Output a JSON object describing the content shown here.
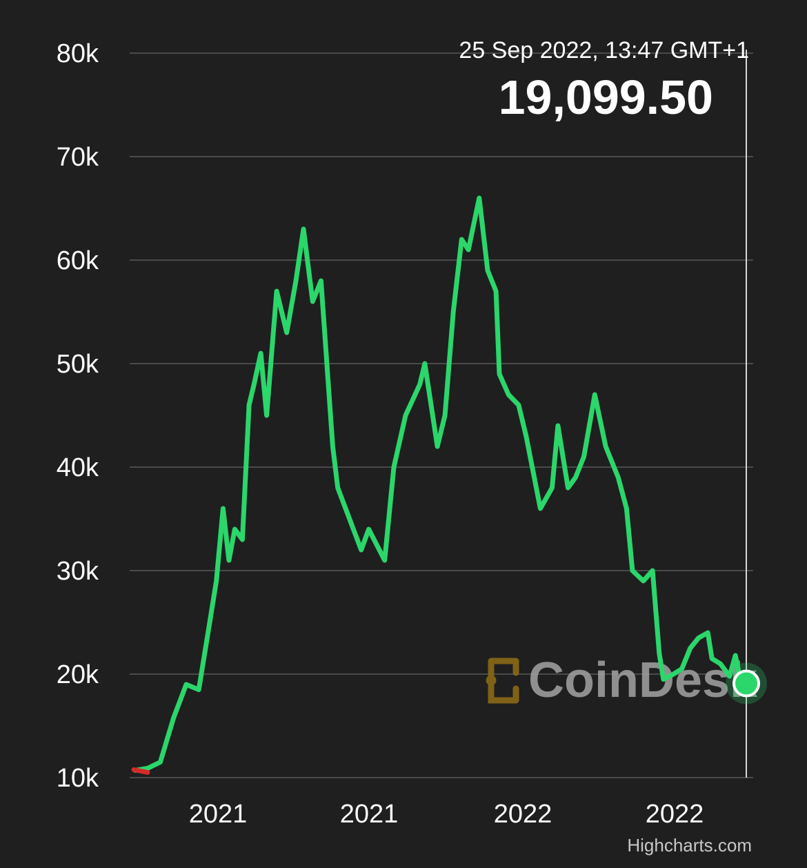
{
  "chart_data": {
    "type": "line",
    "title": "",
    "xlabel": "",
    "ylabel": "",
    "ylim": [
      10000,
      80000
    ],
    "y_ticks": [
      10000,
      20000,
      30000,
      40000,
      50000,
      60000,
      70000,
      80000
    ],
    "y_tick_labels": [
      "10k",
      "20k",
      "30k",
      "40k",
      "50k",
      "60k",
      "70k",
      "80k"
    ],
    "x_tick_labels": [
      "2021",
      "2021",
      "2022",
      "2022"
    ],
    "grid": true,
    "legend": "none",
    "line_color": "#2bd66b",
    "down_color": "#d42a2a",
    "series": [
      {
        "name": "",
        "x": [
          "2020-09-25",
          "2020-10-10",
          "2020-10-25",
          "2020-11-10",
          "2020-11-25",
          "2020-12-10",
          "2020-12-20",
          "2020-12-31",
          "2021-01-08",
          "2021-01-15",
          "2021-01-22",
          "2021-01-31",
          "2021-02-08",
          "2021-02-14",
          "2021-02-22",
          "2021-03-01",
          "2021-03-13",
          "2021-03-25",
          "2021-04-05",
          "2021-04-14",
          "2021-04-25",
          "2021-05-05",
          "2021-05-12",
          "2021-05-19",
          "2021-05-25",
          "2021-06-08",
          "2021-06-22",
          "2021-07-01",
          "2021-07-20",
          "2021-07-31",
          "2021-08-14",
          "2021-08-31",
          "2021-09-06",
          "2021-09-21",
          "2021-09-30",
          "2021-10-10",
          "2021-10-20",
          "2021-10-28",
          "2021-11-10",
          "2021-11-20",
          "2021-11-30",
          "2021-12-04",
          "2021-12-15",
          "2021-12-27",
          "2022-01-05",
          "2022-01-22",
          "2022-02-05",
          "2022-02-12",
          "2022-02-24",
          "2022-03-05",
          "2022-03-15",
          "2022-03-28",
          "2022-04-10",
          "2022-04-25",
          "2022-05-05",
          "2022-05-12",
          "2022-05-25",
          "2022-06-05",
          "2022-06-13",
          "2022-06-18",
          "2022-06-30",
          "2022-07-10",
          "2022-07-20",
          "2022-07-30",
          "2022-08-10",
          "2022-08-15",
          "2022-08-25",
          "2022-09-05",
          "2022-09-12",
          "2022-09-19",
          "2022-09-25"
        ],
        "values": [
          10700,
          10900,
          11500,
          15800,
          19000,
          18500,
          23500,
          29000,
          36000,
          31000,
          34000,
          33000,
          46000,
          48000,
          51000,
          45000,
          57000,
          53000,
          58000,
          63000,
          56000,
          58000,
          50000,
          42000,
          38000,
          35000,
          32000,
          34000,
          31000,
          40000,
          45000,
          48000,
          50000,
          42000,
          45000,
          55000,
          62000,
          61000,
          66000,
          59000,
          57000,
          49000,
          47000,
          46000,
          43000,
          36000,
          38000,
          44000,
          38000,
          39000,
          41000,
          47000,
          42000,
          39000,
          36000,
          30000,
          29000,
          30000,
          22000,
          19500,
          20000,
          20500,
          22500,
          23500,
          24000,
          21500,
          21000,
          19800,
          21800,
          19000,
          19099.5
        ]
      }
    ],
    "tooltip": {
      "date": "25 Sep 2022, 13:47 GMT+1",
      "price": "19,099.50"
    },
    "credit": "Highcharts.com",
    "watermark": "CoinDesk"
  }
}
